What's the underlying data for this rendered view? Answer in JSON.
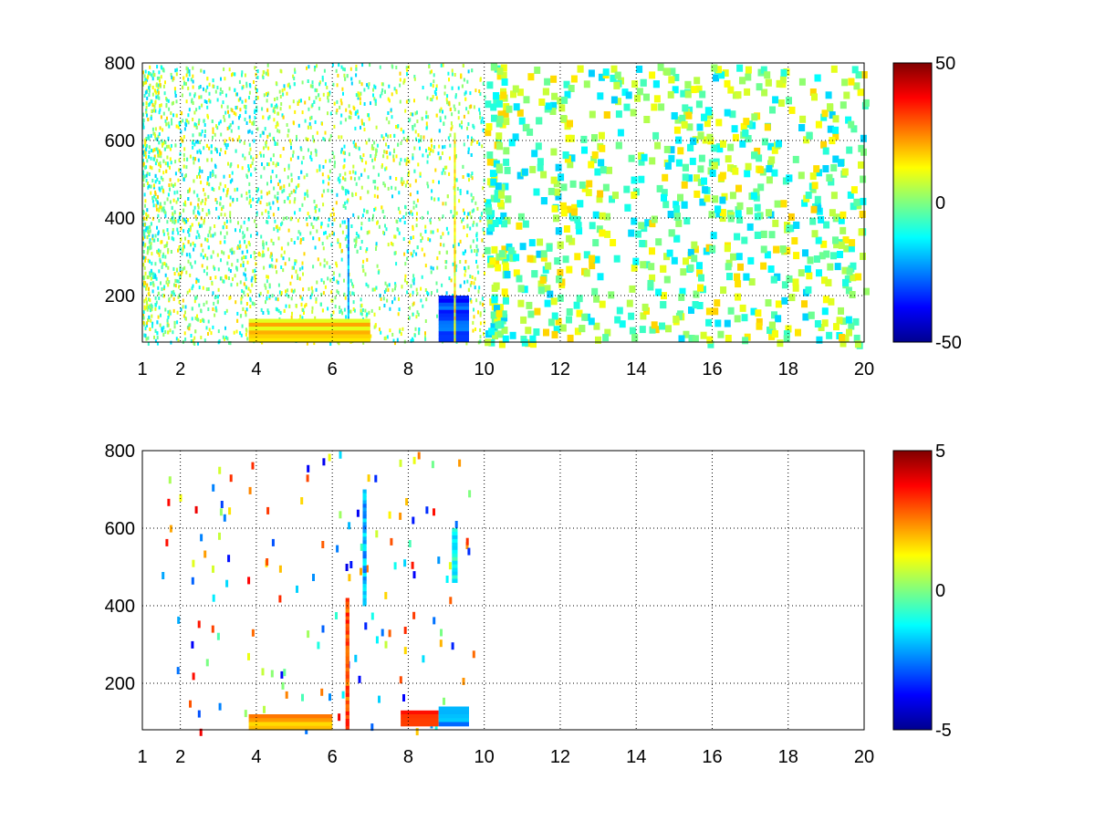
{
  "chart_data": [
    {
      "type": "heatmap",
      "title": "",
      "xlabel": "",
      "ylabel": "",
      "xlim": [
        1,
        20
      ],
      "ylim": [
        80,
        800
      ],
      "xticks": [
        1,
        2,
        4,
        6,
        8,
        10,
        12,
        14,
        16,
        18,
        20
      ],
      "xtick_labels": [
        "1",
        "2",
        "4",
        "6",
        "8",
        "10",
        "12",
        "14",
        "16",
        "18",
        "20"
      ],
      "yticks": [
        200,
        400,
        600,
        800
      ],
      "ytick_labels": [
        "200",
        "400",
        "600",
        "800"
      ],
      "grid": true,
      "colormap": "jet",
      "clim": [
        -50,
        50
      ],
      "colorbar_ticks": [
        -50,
        0,
        50
      ],
      "colorbar_labels": [
        "-50",
        "0",
        "50"
      ],
      "density": "dense",
      "features": [
        {
          "x": [
            8.8,
            9.6
          ],
          "y": [
            80,
            200
          ],
          "value": -30,
          "note": "blue cluster"
        },
        {
          "x": [
            6.4,
            6.45
          ],
          "y": [
            80,
            400
          ],
          "value": -20,
          "note": "cyan vertical streak"
        },
        {
          "x": [
            9.2,
            9.25
          ],
          "y": [
            80,
            620
          ],
          "value": 12,
          "note": "yellow vertical streak"
        },
        {
          "x": [
            3.8,
            7.0
          ],
          "y": [
            80,
            140
          ],
          "value": 15,
          "note": "yellow base band"
        }
      ]
    },
    {
      "type": "heatmap",
      "title": "",
      "xlabel": "",
      "ylabel": "",
      "xlim": [
        1,
        20
      ],
      "ylim": [
        80,
        800
      ],
      "xticks": [
        1,
        2,
        4,
        6,
        8,
        10,
        12,
        14,
        16,
        18,
        20
      ],
      "xtick_labels": [
        "1",
        "2",
        "4",
        "6",
        "8",
        "10",
        "12",
        "14",
        "16",
        "18",
        "20"
      ],
      "yticks": [
        200,
        400,
        600,
        800
      ],
      "ytick_labels": [
        "200",
        "400",
        "600",
        "800"
      ],
      "grid": true,
      "colormap": "jet",
      "clim": [
        -5,
        5
      ],
      "colorbar_ticks": [
        -5,
        0,
        5
      ],
      "colorbar_labels": [
        "-5",
        "0",
        "5"
      ],
      "density": "sparse",
      "features": [
        {
          "x": [
            6.35,
            6.45
          ],
          "y": [
            80,
            420
          ],
          "value": 3,
          "note": "multicolor vertical streak"
        },
        {
          "x": [
            6.8,
            6.9
          ],
          "y": [
            400,
            700
          ],
          "value": -2,
          "note": "blue vertical streak"
        },
        {
          "x": [
            9.15,
            9.3
          ],
          "y": [
            460,
            600
          ],
          "value": -1,
          "note": "cyan vertical streak"
        },
        {
          "x": [
            7.8,
            8.8
          ],
          "y": [
            90,
            130
          ],
          "value": 3,
          "note": "orange base cluster"
        },
        {
          "x": [
            8.8,
            9.6
          ],
          "y": [
            90,
            140
          ],
          "value": -2,
          "note": "blue base cluster"
        },
        {
          "x": [
            3.8,
            6.0
          ],
          "y": [
            80,
            120
          ],
          "value": 2,
          "note": "yellow base band"
        }
      ]
    }
  ]
}
